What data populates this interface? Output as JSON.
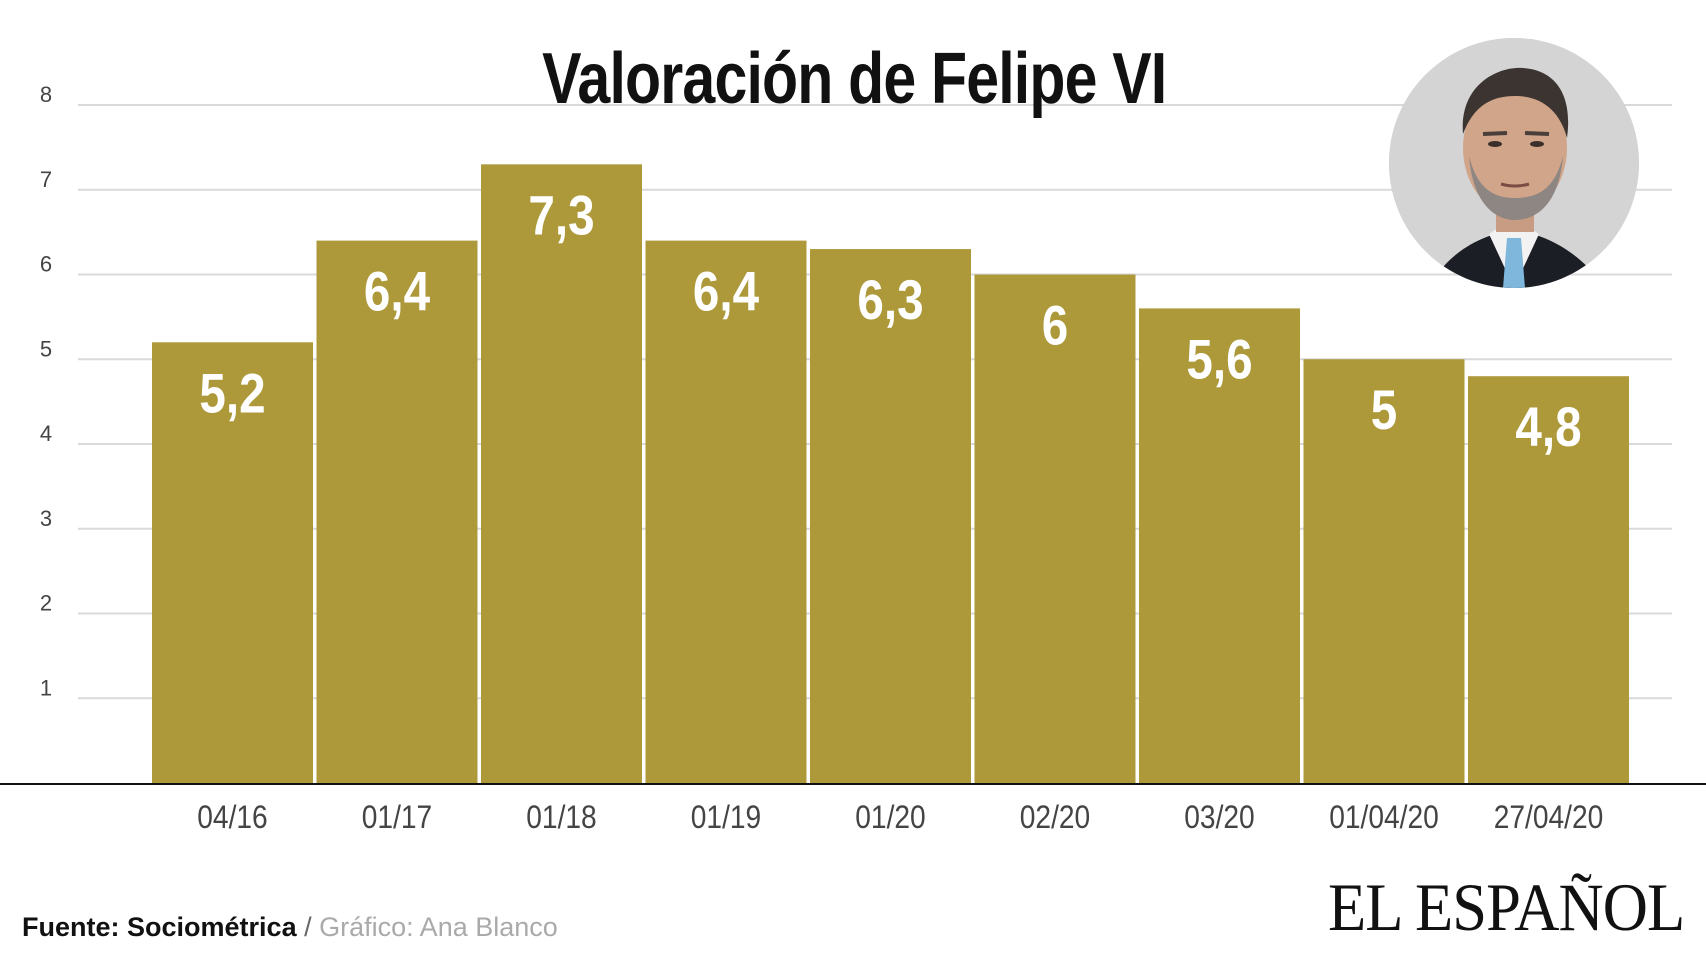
{
  "title": "Valoración de Felipe VI",
  "footer": {
    "source_label": "Fuente:",
    "source_name": "Sociométrica",
    "separator": "/",
    "credit": "Gráfico: Ana Blanco"
  },
  "brand": "EL ESPAÑOL",
  "colors": {
    "bar": "#ad993a",
    "grid": "#d9d9d9",
    "axis": "#111111",
    "bar_label": "#ffffff",
    "tick": "#444444"
  },
  "chart_data": {
    "type": "bar",
    "title": "Valoración de Felipe VI",
    "categories": [
      "04/16",
      "01/17",
      "01/18",
      "01/19",
      "01/20",
      "02/20",
      "03/20",
      "01/04/20",
      "27/04/20"
    ],
    "values": [
      5.2,
      6.4,
      7.3,
      6.4,
      6.3,
      6,
      5.6,
      5,
      4.8
    ],
    "value_labels": [
      "5,2",
      "6,4",
      "7,3",
      "6,4",
      "6,3",
      "6",
      "5,6",
      "5",
      "4,8"
    ],
    "y_ticks": [
      1,
      2,
      3,
      4,
      5,
      6,
      7,
      8
    ],
    "ylim": [
      0,
      8
    ],
    "xlabel": "",
    "ylabel": "",
    "grid": true,
    "legend": "none"
  }
}
